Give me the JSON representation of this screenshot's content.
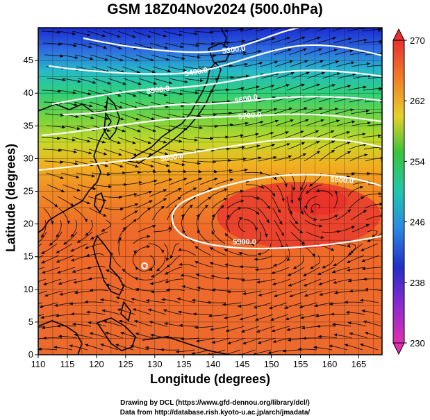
{
  "title": "GSM 18Z04Nov2024 (500.0hPa)",
  "axes": {
    "xlabel": "Longitude (degrees)",
    "ylabel": "Latitude  (degrees)",
    "xticks": [
      "110",
      "115",
      "120",
      "125",
      "130",
      "135",
      "140",
      "145",
      "150",
      "155",
      "160",
      "165"
    ],
    "yticks": [
      "0",
      "5",
      "10",
      "15",
      "20",
      "25",
      "30",
      "35",
      "40",
      "45"
    ]
  },
  "colorbar": {
    "labels": [
      "270",
      "262",
      "254",
      "246",
      "238",
      "230"
    ],
    "min": 230,
    "max": 270
  },
  "contours": [
    {
      "label": "5300.0"
    },
    {
      "label": "5400.0"
    },
    {
      "label": "5500.0"
    },
    {
      "label": "5600.0"
    },
    {
      "label": "5700.0"
    },
    {
      "label": "5800.0"
    },
    {
      "label": "5900.0"
    },
    {
      "label": "5900.0"
    }
  ],
  "credits": {
    "line1": "Drawing by DCL (https://www.gfd-dennou.org/library/dcl/)",
    "line2": "Data from http://database.rish.kyoto-u.ac.jp/arch/jmadata/"
  }
}
